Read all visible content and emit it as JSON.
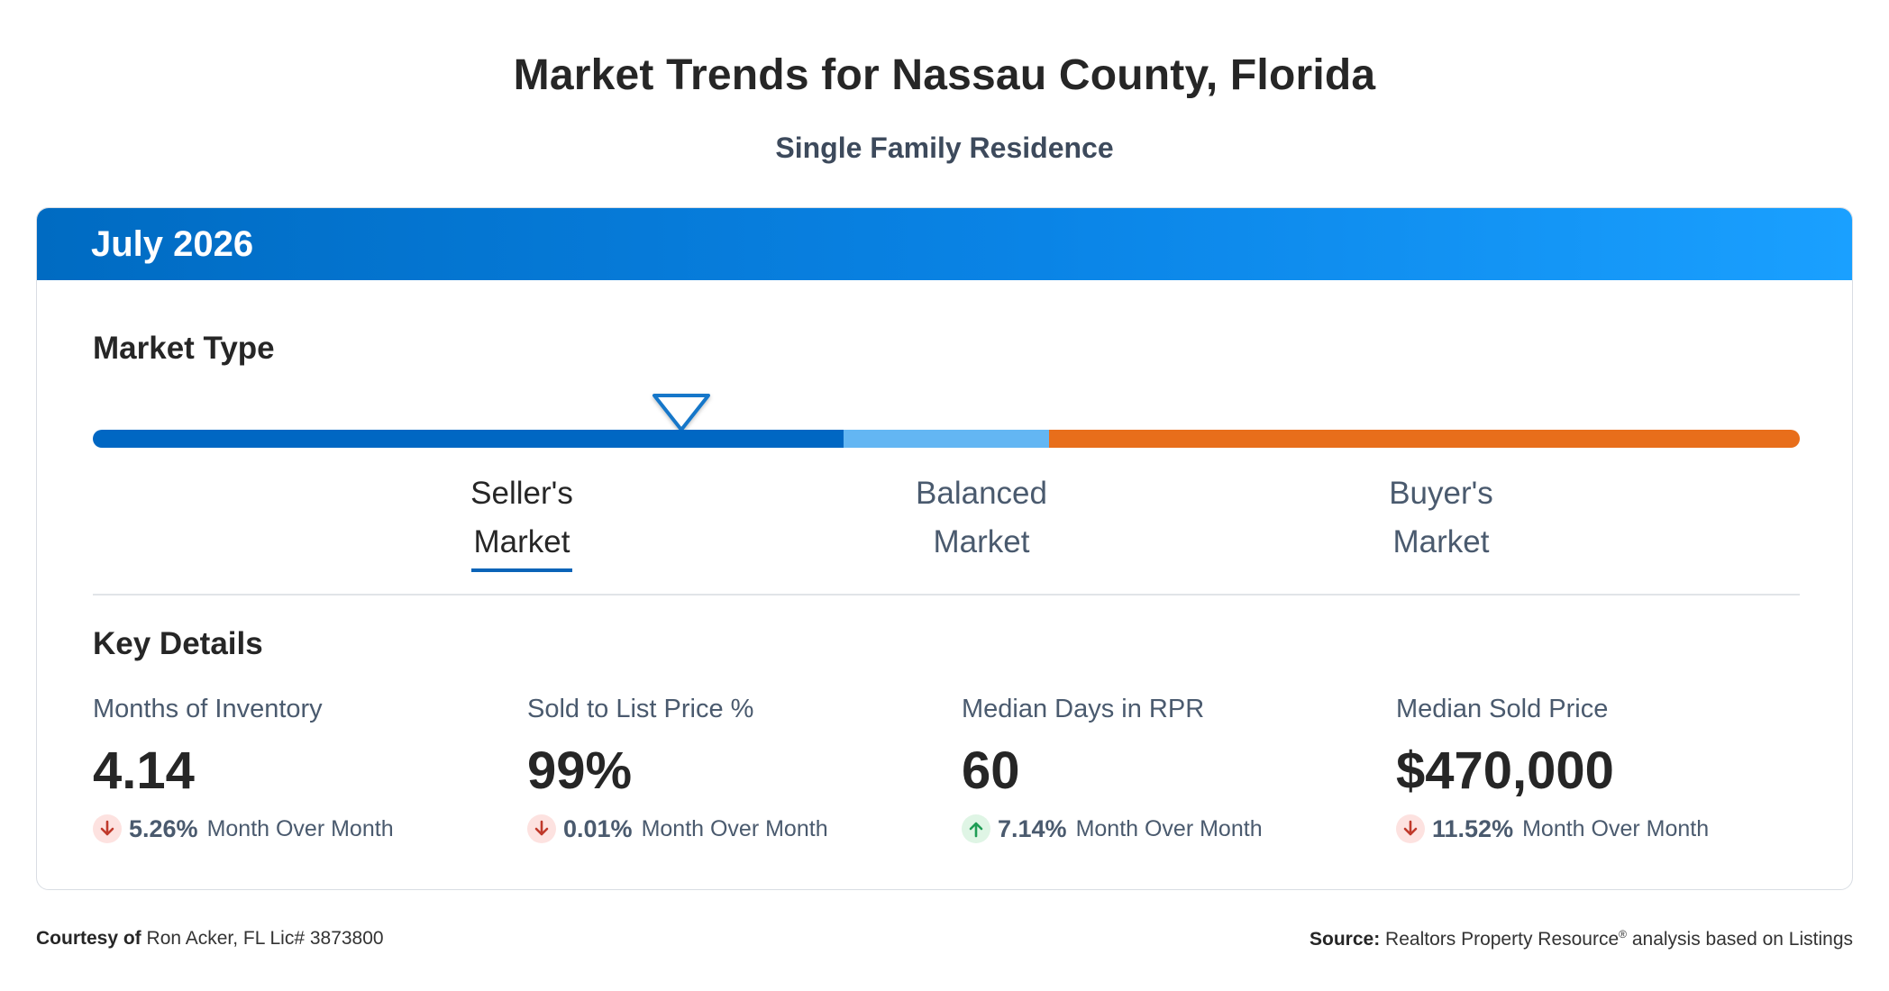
{
  "header": {
    "title": "Market Trends for Nassau County, Florida",
    "subtitle": "Single Family Residence"
  },
  "card": {
    "period": "July 2026",
    "market_type": {
      "label": "Market Type",
      "segments": [
        {
          "line1": "Seller's",
          "line2": "Market",
          "active": true,
          "color": "#0067c3"
        },
        {
          "line1": "Balanced",
          "line2": "Market",
          "active": false,
          "color": "#63b6f3"
        },
        {
          "line1": "Buyer's",
          "line2": "Market",
          "active": false,
          "color": "#e86e1b"
        }
      ],
      "indicator_position_fraction": 0.345
    },
    "key_details": {
      "label": "Key Details",
      "metrics": [
        {
          "name": "Months of Inventory",
          "value": "4.14",
          "change_pct": "5.26%",
          "direction": "down",
          "change_label": "Month Over Month"
        },
        {
          "name": "Sold to List Price %",
          "value": "99%",
          "change_pct": "0.01%",
          "direction": "down",
          "change_label": "Month Over Month"
        },
        {
          "name": "Median Days in RPR",
          "value": "60",
          "change_pct": "7.14%",
          "direction": "up",
          "change_label": "Month Over Month"
        },
        {
          "name": "Median Sold Price",
          "value": "$470,000",
          "change_pct": "11.52%",
          "direction": "down",
          "change_label": "Month Over Month"
        }
      ]
    }
  },
  "footer": {
    "courtesy_prefix": "Courtesy of",
    "courtesy_text": "Ron Acker, FL Lic# 3873800",
    "source_prefix": "Source:",
    "source_name": "Realtors Property Resource",
    "source_mark": "®",
    "source_suffix": "analysis based on Listings"
  },
  "colors": {
    "header_gradient_start": "#006bc2",
    "header_gradient_end": "#1aa0ff",
    "down_arrow": "#c0392b",
    "up_arrow": "#1f9d55"
  }
}
